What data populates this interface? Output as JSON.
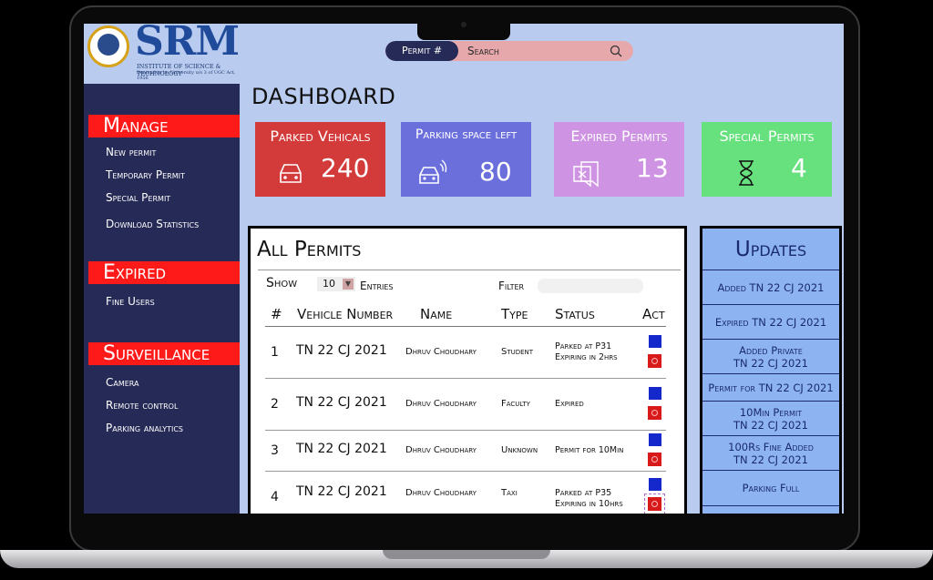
{
  "logo": {
    "title": "SRM",
    "subtitle": "INSTITUTE OF SCIENCE & TECHNOLOGY",
    "tagline": "Deemed to be University u/s 3 of UGC Act, 1956"
  },
  "search": {
    "tag": "Permit #",
    "placeholder": "Search"
  },
  "page_title": "DASHBOARD",
  "sidebar": {
    "sections": [
      {
        "title": "Manage",
        "items": [
          "New permit",
          "Temporary Permit",
          "Special Permit",
          "Download Statistics"
        ]
      },
      {
        "title": "Expired",
        "items": [
          "Fine Users"
        ]
      },
      {
        "title": "Surveillance",
        "items": [
          "Camera",
          "Remote control",
          "Parking analytics"
        ]
      }
    ]
  },
  "stats": [
    {
      "label": "Parked Vehicals",
      "value": "240",
      "color": "#d33b3b",
      "icon": "car-icon"
    },
    {
      "label": "Parking space left",
      "value": "80",
      "color": "#6b6fdb",
      "icon": "car-signal-icon"
    },
    {
      "label": "Expired Permits",
      "value": "13",
      "color": "#cf93e3",
      "icon": "expired-permit-icon"
    },
    {
      "label": "Special Permits",
      "value": "4",
      "color": "#67e07e",
      "icon": "hourglass-icon"
    }
  ],
  "permits": {
    "title": "All Permits",
    "show_label": "Show",
    "entries_value": "10",
    "entries_label": "Entries",
    "filter_label": "Filter",
    "columns": [
      "#",
      "Vehicle Number",
      "Name",
      "Type",
      "Status",
      "Act"
    ],
    "rows": [
      {
        "num": "1",
        "vehicle": "TN 22 CJ 2021",
        "name": "Dhruv Choudhary",
        "type": "Student",
        "status_line1": "Parked at P31",
        "status_line2": "Expiring in 2hrs"
      },
      {
        "num": "2",
        "vehicle": "TN 22 CJ 2021",
        "name": "Dhruv Choudhary",
        "type": "Faculty",
        "status_line1": "Expired",
        "status_line2": ""
      },
      {
        "num": "3",
        "vehicle": "TN 22 CJ 2021",
        "name": "Dhruv Choudhary",
        "type": "Unknown",
        "status_line1": "Permit for 10Min",
        "status_line2": ""
      },
      {
        "num": "4",
        "vehicle": "TN 22 CJ 2021",
        "name": "Dhruv Choudhary",
        "type": "Taxi",
        "status_line1": "Parked at P35",
        "status_line2": "Expiring in 10hrs"
      }
    ]
  },
  "updates": {
    "title": "Updates",
    "items": [
      {
        "line1": "Added TN 22 CJ 2021",
        "line2": ""
      },
      {
        "line1": "Expired TN 22 CJ 2021",
        "line2": ""
      },
      {
        "line1": "Added Private",
        "line2": "TN 22 CJ 2021"
      },
      {
        "line1": "Permit for TN 22 CJ 2021",
        "line2": ""
      },
      {
        "line1": "10Min Permit",
        "line2": "TN 22 CJ 2021"
      },
      {
        "line1": "100Rs Fine Added",
        "line2": "TN 22 CJ 2021"
      },
      {
        "line1": "Parking Full",
        "line2": ""
      }
    ]
  }
}
